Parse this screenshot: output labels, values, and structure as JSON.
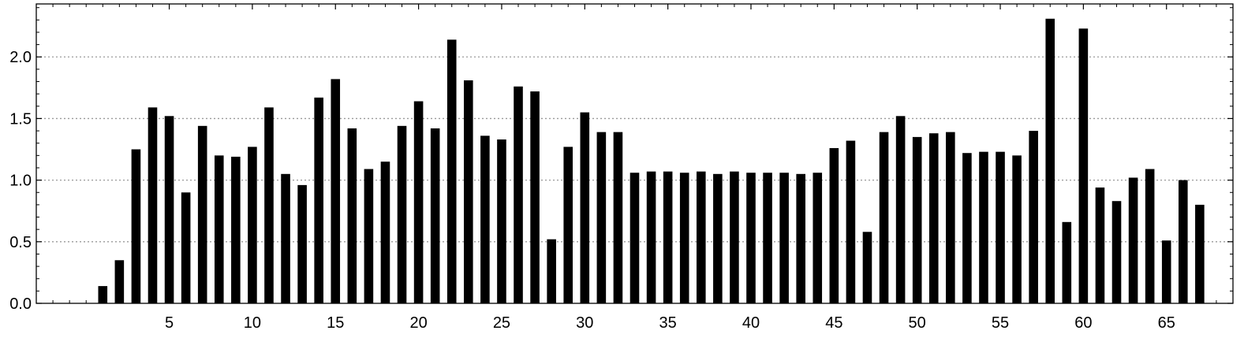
{
  "chart_data": {
    "type": "bar",
    "title": "",
    "xlabel": "",
    "ylabel": "",
    "x": [
      1,
      2,
      3,
      4,
      5,
      6,
      7,
      8,
      9,
      10,
      11,
      12,
      13,
      14,
      15,
      16,
      17,
      18,
      19,
      20,
      21,
      22,
      23,
      24,
      25,
      26,
      27,
      28,
      29,
      30,
      31,
      32,
      33,
      34,
      35,
      36,
      37,
      38,
      39,
      40,
      41,
      42,
      43,
      44,
      45,
      46,
      47,
      48,
      49,
      50,
      51,
      52,
      53,
      54,
      55,
      56,
      57,
      58,
      59,
      60,
      61,
      62,
      63,
      64,
      65,
      66,
      67
    ],
    "values": [
      0.14,
      0.35,
      1.25,
      1.59,
      1.52,
      0.9,
      1.44,
      1.2,
      1.19,
      1.27,
      1.59,
      1.05,
      0.96,
      1.67,
      1.82,
      1.42,
      1.09,
      1.15,
      1.44,
      1.64,
      1.42,
      2.14,
      1.81,
      1.36,
      1.33,
      1.76,
      1.72,
      0.52,
      1.27,
      1.55,
      1.39,
      1.39,
      1.06,
      1.07,
      1.07,
      1.06,
      1.07,
      1.05,
      1.07,
      1.06,
      1.06,
      1.06,
      1.05,
      1.06,
      1.26,
      1.32,
      0.58,
      1.39,
      1.52,
      1.35,
      1.38,
      1.39,
      1.22,
      1.23,
      1.23,
      1.2,
      1.4,
      2.31,
      0.66,
      2.23,
      0.94,
      0.83,
      1.02,
      1.09,
      0.51,
      1.0,
      0.8
    ],
    "xlim": [
      -3,
      69
    ],
    "ylim": [
      0,
      2.43
    ],
    "xticks": [
      5,
      10,
      15,
      20,
      25,
      30,
      35,
      40,
      45,
      50,
      55,
      60,
      65
    ],
    "xtick_labels": [
      "5",
      "10",
      "15",
      "20",
      "25",
      "30",
      "35",
      "40",
      "45",
      "50",
      "55",
      "60",
      "65"
    ],
    "yticks": [
      0.0,
      0.5,
      1.0,
      1.5,
      2.0
    ],
    "ytick_labels": [
      "0.0",
      "0.5",
      "1.0",
      "1.5",
      "2.0"
    ],
    "grid": {
      "y": true,
      "x": false,
      "style": "dotted"
    },
    "colors": {
      "bar": "#000000",
      "grid": "#999999",
      "axis": "#000000"
    }
  }
}
